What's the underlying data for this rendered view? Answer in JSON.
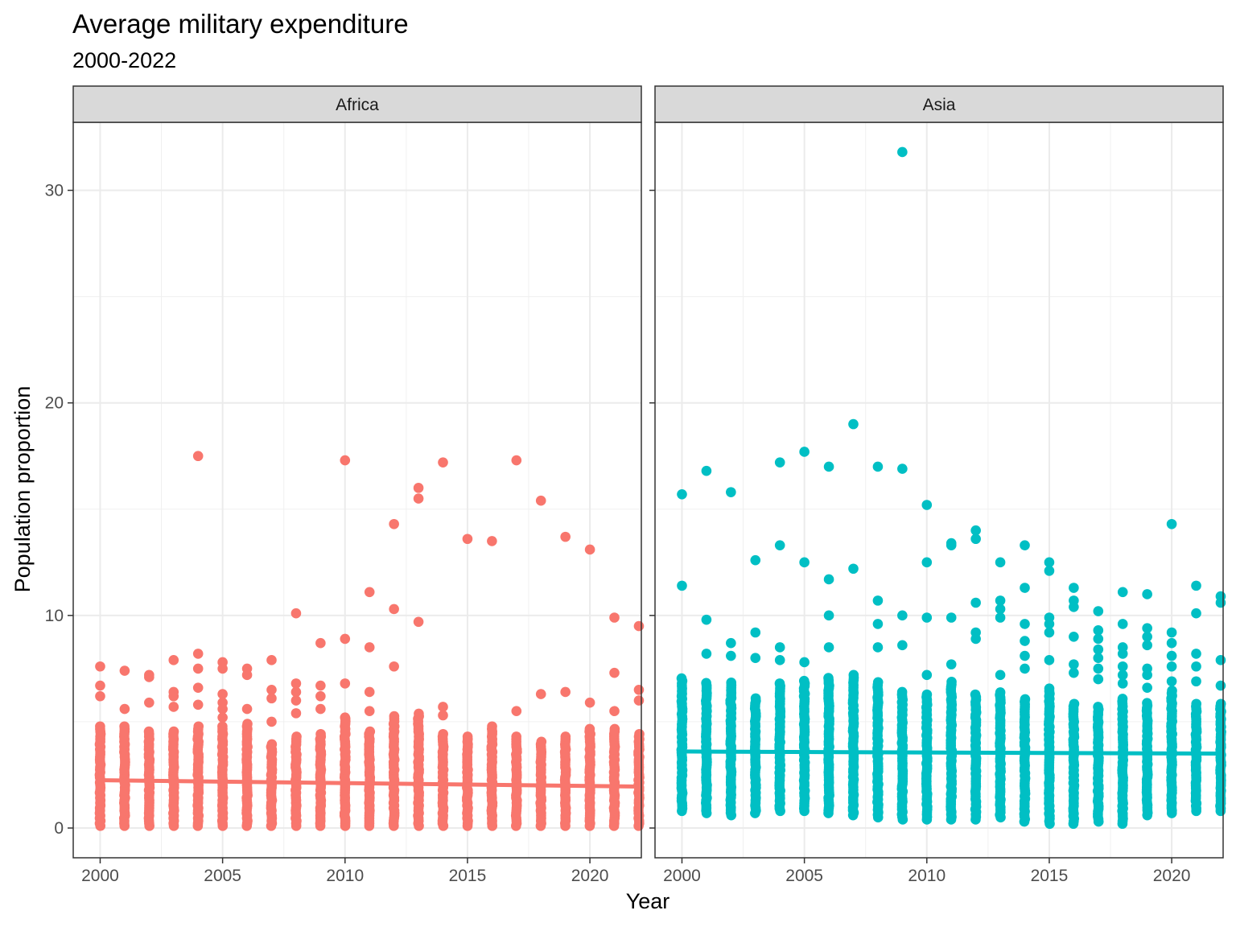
{
  "chart_data": {
    "type": "scatter",
    "title": "Average military expenditure",
    "subtitle": "2000-2022",
    "xlabel": "Year",
    "ylabel": "Population proportion",
    "xlim": [
      1998.9,
      2022.1
    ],
    "ylim": [
      -1.4,
      33.2
    ],
    "x_ticks": [
      2000,
      2005,
      2010,
      2015,
      2020
    ],
    "y_ticks": [
      0,
      10,
      20,
      30
    ],
    "grid": true,
    "legend": "none",
    "colors": {
      "Africa": "#F8766D",
      "Asia": "#00BFC4"
    },
    "panels": [
      {
        "name": "Africa",
        "trend": {
          "x": [
            2000,
            2022
          ],
          "y": [
            2.25,
            1.95
          ]
        },
        "dense_min": [
          0.1,
          0.1,
          0.1,
          0.1,
          0.1,
          0.1,
          0.1,
          0.1,
          0.1,
          0.1,
          0.1,
          0.1,
          0.1,
          0.1,
          0.1,
          0.1,
          0.1,
          0.1,
          0.1,
          0.1,
          0.1,
          0.1,
          0.1
        ],
        "dense_max": [
          4.8,
          4.8,
          4.6,
          4.6,
          4.8,
          4.8,
          4.9,
          4.0,
          4.4,
          4.5,
          5.2,
          4.6,
          5.3,
          5.4,
          4.5,
          4.4,
          4.8,
          4.3,
          4.1,
          4.3,
          4.7,
          4.7,
          4.5
        ],
        "outliers": [
          [
            2000,
            7.6
          ],
          [
            2000,
            6.7
          ],
          [
            2000,
            6.2
          ],
          [
            2001,
            7.4
          ],
          [
            2001,
            5.6
          ],
          [
            2002,
            7.2
          ],
          [
            2002,
            7.1
          ],
          [
            2002,
            5.9
          ],
          [
            2003,
            7.9
          ],
          [
            2003,
            6.4
          ],
          [
            2003,
            6.2
          ],
          [
            2003,
            5.7
          ],
          [
            2004,
            17.5
          ],
          [
            2004,
            8.2
          ],
          [
            2004,
            7.5
          ],
          [
            2004,
            6.6
          ],
          [
            2004,
            5.8
          ],
          [
            2005,
            7.8
          ],
          [
            2005,
            7.5
          ],
          [
            2005,
            6.3
          ],
          [
            2005,
            5.9
          ],
          [
            2005,
            5.6
          ],
          [
            2005,
            5.2
          ],
          [
            2006,
            7.5
          ],
          [
            2006,
            7.2
          ],
          [
            2006,
            5.6
          ],
          [
            2007,
            7.9
          ],
          [
            2007,
            6.5
          ],
          [
            2007,
            6.1
          ],
          [
            2007,
            5.0
          ],
          [
            2008,
            10.1
          ],
          [
            2008,
            6.8
          ],
          [
            2008,
            6.4
          ],
          [
            2008,
            6.0
          ],
          [
            2008,
            5.4
          ],
          [
            2009,
            8.7
          ],
          [
            2009,
            6.7
          ],
          [
            2009,
            6.2
          ],
          [
            2009,
            5.6
          ],
          [
            2010,
            17.3
          ],
          [
            2010,
            8.9
          ],
          [
            2010,
            6.8
          ],
          [
            2010,
            5.2
          ],
          [
            2011,
            11.1
          ],
          [
            2011,
            8.5
          ],
          [
            2011,
            6.4
          ],
          [
            2011,
            5.5
          ],
          [
            2012,
            14.3
          ],
          [
            2012,
            10.3
          ],
          [
            2012,
            7.6
          ],
          [
            2013,
            16.0
          ],
          [
            2013,
            15.5
          ],
          [
            2013,
            9.7
          ],
          [
            2014,
            17.2
          ],
          [
            2014,
            5.7
          ],
          [
            2014,
            5.3
          ],
          [
            2015,
            13.6
          ],
          [
            2016,
            13.5
          ],
          [
            2017,
            17.3
          ],
          [
            2017,
            5.5
          ],
          [
            2018,
            15.4
          ],
          [
            2018,
            6.3
          ],
          [
            2019,
            13.7
          ],
          [
            2019,
            6.4
          ],
          [
            2020,
            13.1
          ],
          [
            2020,
            5.9
          ],
          [
            2021,
            9.9
          ],
          [
            2021,
            7.3
          ],
          [
            2021,
            5.5
          ],
          [
            2022,
            9.5
          ],
          [
            2022,
            6.5
          ],
          [
            2022,
            6.0
          ]
        ]
      },
      {
        "name": "Asia",
        "trend": {
          "x": [
            2000,
            2022
          ],
          "y": [
            3.6,
            3.5
          ]
        },
        "dense_min": [
          0.8,
          0.7,
          0.6,
          0.7,
          0.8,
          0.8,
          0.7,
          0.6,
          0.5,
          0.4,
          0.4,
          0.4,
          0.4,
          0.5,
          0.3,
          0.2,
          0.2,
          0.3,
          0.2,
          0.6,
          0.7,
          0.8,
          0.8
        ],
        "dense_max": [
          7.1,
          6.9,
          6.9,
          6.1,
          6.8,
          7.0,
          7.1,
          7.3,
          6.9,
          6.5,
          6.3,
          6.9,
          6.3,
          6.4,
          6.1,
          6.6,
          5.9,
          5.7,
          6.1,
          5.9,
          6.5,
          5.9,
          5.9
        ],
        "outliers": [
          [
            2000,
            15.7
          ],
          [
            2000,
            11.4
          ],
          [
            2001,
            16.8
          ],
          [
            2001,
            9.8
          ],
          [
            2001,
            8.2
          ],
          [
            2002,
            15.8
          ],
          [
            2002,
            8.7
          ],
          [
            2002,
            8.1
          ],
          [
            2003,
            12.6
          ],
          [
            2003,
            9.2
          ],
          [
            2003,
            8.0
          ],
          [
            2004,
            17.2
          ],
          [
            2004,
            13.3
          ],
          [
            2004,
            8.5
          ],
          [
            2004,
            7.9
          ],
          [
            2005,
            17.7
          ],
          [
            2005,
            12.5
          ],
          [
            2005,
            7.8
          ],
          [
            2006,
            17.0
          ],
          [
            2006,
            11.7
          ],
          [
            2006,
            10.0
          ],
          [
            2006,
            8.5
          ],
          [
            2007,
            19.0
          ],
          [
            2007,
            12.2
          ],
          [
            2008,
            17.0
          ],
          [
            2008,
            10.7
          ],
          [
            2008,
            9.6
          ],
          [
            2008,
            8.5
          ],
          [
            2009,
            31.8
          ],
          [
            2009,
            16.9
          ],
          [
            2009,
            10.0
          ],
          [
            2009,
            8.6
          ],
          [
            2010,
            15.2
          ],
          [
            2010,
            12.5
          ],
          [
            2010,
            9.9
          ],
          [
            2010,
            7.2
          ],
          [
            2011,
            13.4
          ],
          [
            2011,
            13.3
          ],
          [
            2011,
            9.9
          ],
          [
            2011,
            7.7
          ],
          [
            2012,
            14.0
          ],
          [
            2012,
            13.6
          ],
          [
            2012,
            10.6
          ],
          [
            2012,
            9.2
          ],
          [
            2012,
            8.9
          ],
          [
            2013,
            12.5
          ],
          [
            2013,
            10.7
          ],
          [
            2013,
            10.3
          ],
          [
            2013,
            9.9
          ],
          [
            2013,
            7.2
          ],
          [
            2014,
            13.3
          ],
          [
            2014,
            11.3
          ],
          [
            2014,
            9.6
          ],
          [
            2014,
            8.8
          ],
          [
            2014,
            8.1
          ],
          [
            2014,
            7.5
          ],
          [
            2015,
            12.5
          ],
          [
            2015,
            12.1
          ],
          [
            2015,
            9.9
          ],
          [
            2015,
            9.6
          ],
          [
            2015,
            9.2
          ],
          [
            2015,
            7.9
          ],
          [
            2016,
            11.3
          ],
          [
            2016,
            10.7
          ],
          [
            2016,
            10.4
          ],
          [
            2016,
            9.0
          ],
          [
            2016,
            7.7
          ],
          [
            2016,
            7.3
          ],
          [
            2017,
            10.2
          ],
          [
            2017,
            9.3
          ],
          [
            2017,
            8.9
          ],
          [
            2017,
            8.4
          ],
          [
            2017,
            8.0
          ],
          [
            2017,
            7.5
          ],
          [
            2017,
            7.0
          ],
          [
            2018,
            11.1
          ],
          [
            2018,
            9.6
          ],
          [
            2018,
            8.5
          ],
          [
            2018,
            8.2
          ],
          [
            2018,
            7.6
          ],
          [
            2018,
            7.2
          ],
          [
            2018,
            6.8
          ],
          [
            2019,
            11.0
          ],
          [
            2019,
            9.4
          ],
          [
            2019,
            9.0
          ],
          [
            2019,
            8.6
          ],
          [
            2019,
            7.5
          ],
          [
            2019,
            7.2
          ],
          [
            2019,
            6.6
          ],
          [
            2020,
            14.3
          ],
          [
            2020,
            9.2
          ],
          [
            2020,
            8.7
          ],
          [
            2020,
            8.1
          ],
          [
            2020,
            7.6
          ],
          [
            2020,
            6.9
          ],
          [
            2021,
            11.4
          ],
          [
            2021,
            10.1
          ],
          [
            2021,
            8.2
          ],
          [
            2021,
            7.6
          ],
          [
            2021,
            6.9
          ],
          [
            2022,
            10.9
          ],
          [
            2022,
            10.6
          ],
          [
            2022,
            7.9
          ],
          [
            2022,
            6.7
          ]
        ]
      }
    ]
  }
}
